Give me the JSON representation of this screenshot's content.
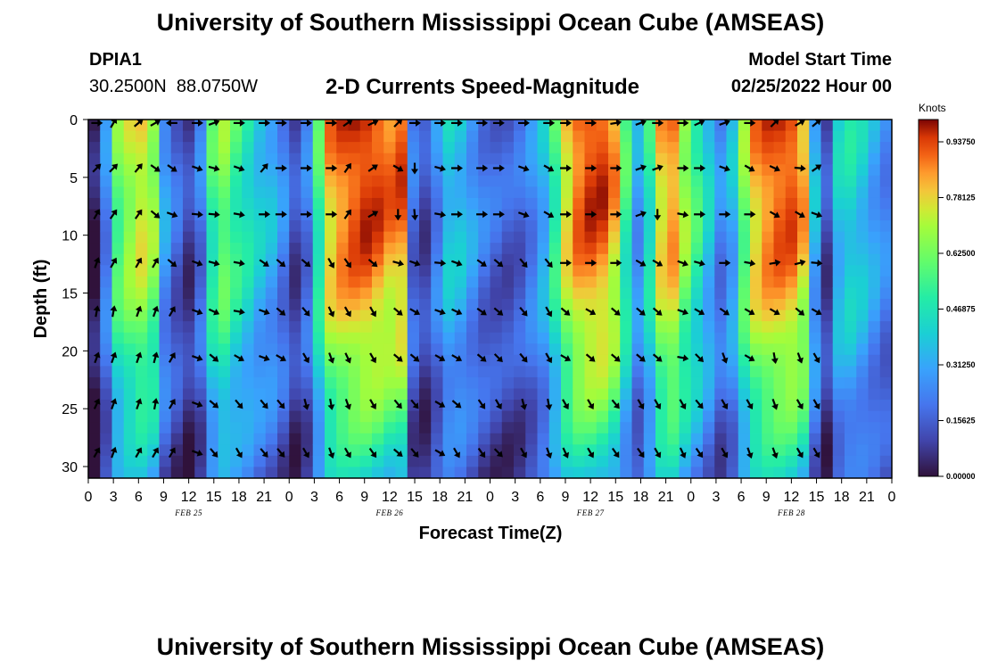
{
  "header": {
    "title": "University of Southern Mississippi Ocean Cube (AMSEAS)",
    "station_id": "DPIA1",
    "station_coords": "30.2500N  88.0750W",
    "plot_title": "2-D Currents Speed-Magnitude",
    "model_label": "Model Start Time",
    "model_time": "02/25/2022 Hour 00"
  },
  "footer": {
    "title": "University of Southern Mississippi Ocean Cube (AMSEAS)"
  },
  "chart_data": {
    "type": "heatmap",
    "title": "2-D Currents Speed-Magnitude",
    "xlabel": "Forecast Time(Z)",
    "ylabel": "Depth (ft)",
    "xlim": [
      0,
      96
    ],
    "ylim": [
      0,
      31
    ],
    "x_tick_labels": [
      "0",
      "3",
      "6",
      "9",
      "12",
      "15",
      "18",
      "21",
      "0",
      "3",
      "6",
      "9",
      "12",
      "15",
      "18",
      "21",
      "0",
      "3",
      "6",
      "9",
      "12",
      "15",
      "18",
      "21",
      "0",
      "3",
      "6",
      "9",
      "12",
      "15",
      "18",
      "21",
      "0"
    ],
    "y_ticks": [
      0,
      5,
      10,
      15,
      20,
      25,
      30
    ],
    "date_labels": [
      {
        "hour": 12,
        "label": "FEB 25"
      },
      {
        "hour": 36,
        "label": "FEB 26"
      },
      {
        "hour": 60,
        "label": "FEB 27"
      },
      {
        "hour": 84,
        "label": "FEB 28"
      }
    ],
    "colorbar": {
      "unit": "Knots",
      "range": [
        0,
        1.0
      ],
      "tick_values": [
        0.0,
        0.15625,
        0.3125,
        0.46875,
        0.625,
        0.78125,
        0.9375
      ],
      "tick_labels": [
        "0.00000",
        "0.15625",
        "0.31250",
        "0.46875",
        "0.62500",
        "0.78125",
        "0.93750"
      ]
    },
    "speed_profile_surface": [
      0.02,
      0.25,
      0.62,
      0.72,
      0.78,
      0.7,
      0.3,
      0.18,
      0.1,
      0.22,
      0.55,
      0.65,
      0.55,
      0.48,
      0.4,
      0.35,
      0.25,
      0.12,
      0.22,
      0.55,
      0.85,
      0.92,
      0.96,
      0.98,
      0.95,
      0.9,
      0.92,
      0.2,
      0.12,
      0.25,
      0.4,
      0.38,
      0.3,
      0.22,
      0.18,
      0.16,
      0.18,
      0.25,
      0.35,
      0.55,
      0.8,
      0.92,
      0.96,
      0.95,
      0.85,
      0.55,
      0.3,
      0.5,
      0.82,
      0.88,
      0.7,
      0.55,
      0.4,
      0.25,
      0.35,
      0.65,
      0.85,
      0.92,
      0.95,
      0.95,
      0.85,
      0.35,
      0.12,
      0.4,
      0.45,
      0.4,
      0.32,
      0.25
    ],
    "arrow_hours": [
      1,
      3,
      6,
      8,
      10,
      13,
      15,
      18,
      21,
      23,
      26,
      29,
      31,
      34,
      37,
      39,
      42,
      44,
      47,
      49,
      52,
      55,
      57,
      60,
      63,
      66,
      68,
      71,
      73,
      76,
      79,
      82,
      85,
      87
    ],
    "arrow_depths_ft": [
      0.3,
      4.2,
      8.2,
      12.4,
      16.6,
      20.6,
      24.6,
      28.8
    ],
    "arrow_rows_deg": [
      [
        0,
        60,
        40,
        30,
        180,
        0,
        20,
        0,
        0,
        0,
        0,
        0,
        35,
        25,
        45,
        0,
        0,
        0,
        0,
        0,
        0,
        0,
        0,
        0,
        10,
        20,
        0,
        0,
        25,
        20,
        0,
        45,
        30,
        40
      ],
      [
        45,
        45,
        50,
        -35,
        -35,
        -20,
        -15,
        -20,
        50,
        0,
        0,
        0,
        55,
        35,
        -30,
        -90,
        -15,
        0,
        0,
        0,
        -20,
        -30,
        0,
        0,
        0,
        20,
        20,
        0,
        0,
        -20,
        -30,
        -25,
        -5,
        35
      ],
      [
        60,
        55,
        55,
        -40,
        -20,
        -5,
        -5,
        -10,
        0,
        0,
        0,
        0,
        55,
        30,
        -90,
        -85,
        -10,
        0,
        0,
        0,
        -20,
        -30,
        0,
        0,
        0,
        20,
        -90,
        -10,
        0,
        0,
        0,
        -30,
        -30,
        -20
      ],
      [
        70,
        60,
        60,
        60,
        -40,
        -20,
        -15,
        -10,
        -35,
        -40,
        -40,
        -60,
        -55,
        -40,
        -15,
        -20,
        -5,
        -20,
        -35,
        -40,
        -50,
        -50,
        0,
        0,
        0,
        -30,
        -30,
        -20,
        -15,
        0,
        -10,
        10,
        15,
        -5
      ],
      [
        80,
        80,
        70,
        70,
        60,
        -20,
        -25,
        -10,
        -20,
        -40,
        -50,
        -65,
        -60,
        -60,
        -40,
        -30,
        -20,
        -25,
        -35,
        -40,
        -50,
        -60,
        -40,
        -30,
        -40,
        -40,
        -40,
        -20,
        -30,
        -35,
        -30,
        -30,
        -40,
        -30
      ],
      [
        70,
        70,
        70,
        75,
        60,
        -20,
        -40,
        -30,
        -20,
        -30,
        -60,
        -70,
        -65,
        -60,
        -40,
        -40,
        -30,
        -30,
        -40,
        -45,
        -50,
        -60,
        -30,
        -40,
        -40,
        -40,
        -40,
        -10,
        -45,
        -70,
        -30,
        -80,
        -70,
        -60
      ],
      [
        65,
        70,
        70,
        80,
        60,
        -20,
        -40,
        -50,
        -50,
        -50,
        -75,
        -80,
        -70,
        -60,
        -50,
        -50,
        -30,
        -40,
        -55,
        -60,
        -75,
        -80,
        -60,
        -60,
        -50,
        -60,
        -60,
        -60,
        -50,
        -60,
        -60,
        -70,
        -60,
        -60
      ],
      [
        60,
        70,
        60,
        60,
        60,
        -20,
        -50,
        -60,
        -50,
        -50,
        -60,
        -70,
        -60,
        -55,
        -40,
        -50,
        -30,
        -60,
        -55,
        -45,
        -60,
        -70,
        -65,
        -60,
        -55,
        -55,
        -60,
        -65,
        -55,
        -60,
        -70,
        -70,
        -60,
        -60
      ]
    ]
  }
}
